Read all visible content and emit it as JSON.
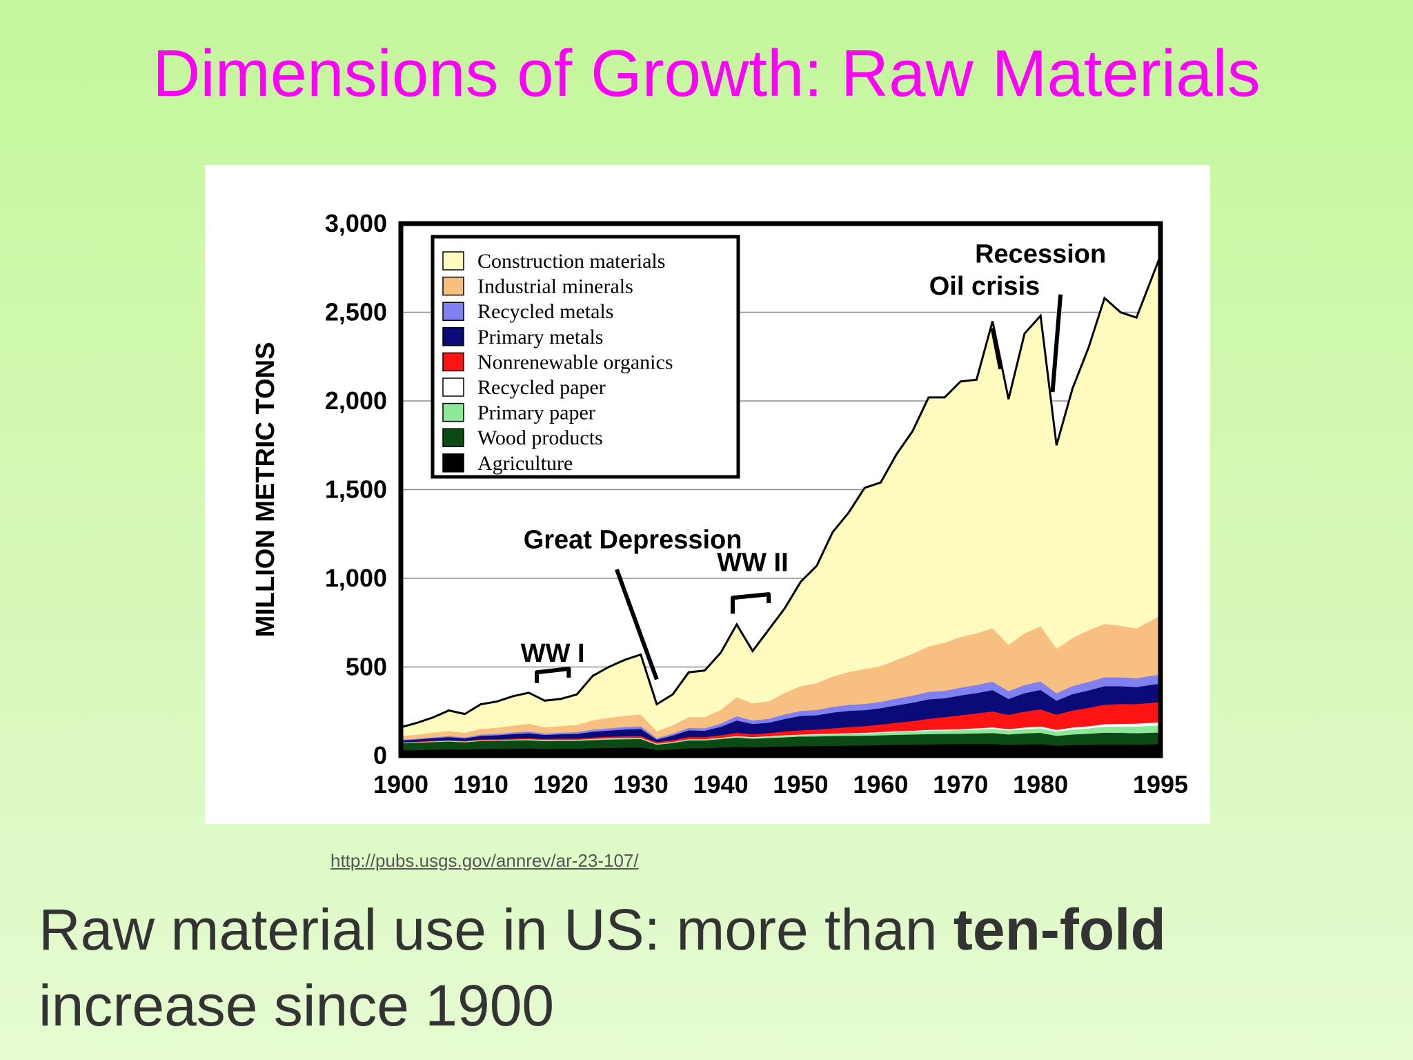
{
  "slide": {
    "title": "Dimensions of Growth: Raw Materials",
    "source_url": "http://pubs.usgs.gov/annrev/ar-23-107/",
    "caption_prefix": "Raw material use in US: more than ",
    "caption_bold": "ten-fold",
    "caption_suffix": "increase since 1900",
    "title_color": "#ff00ff"
  },
  "chart_data": {
    "type": "area",
    "stacked": true,
    "title": "",
    "xlabel": "",
    "ylabel": "MILLION METRIC TONS",
    "xlim": [
      1900,
      1995
    ],
    "ylim": [
      0,
      3000
    ],
    "x_ticks": [
      1900,
      1910,
      1920,
      1930,
      1940,
      1950,
      1960,
      1970,
      1980,
      1995
    ],
    "x_tick_labels": [
      "1900",
      "1910",
      "1920",
      "1930",
      "1940",
      "1950",
      "1960",
      "1970",
      "1980",
      "1995"
    ],
    "y_ticks": [
      0,
      500,
      1000,
      1500,
      2000,
      2500,
      3000
    ],
    "y_tick_labels": [
      "0",
      "500",
      "1,000",
      "1,500",
      "2,000",
      "2,500",
      "3,000"
    ],
    "grid": "horizontal",
    "legend_position": "top-left",
    "x": [
      1900,
      1902,
      1904,
      1906,
      1908,
      1910,
      1912,
      1914,
      1916,
      1918,
      1920,
      1922,
      1924,
      1926,
      1928,
      1930,
      1932,
      1934,
      1936,
      1938,
      1940,
      1942,
      1944,
      1946,
      1948,
      1950,
      1952,
      1954,
      1956,
      1958,
      1960,
      1962,
      1964,
      1966,
      1968,
      1970,
      1972,
      1974,
      1976,
      1978,
      1980,
      1982,
      1984,
      1986,
      1988,
      1990,
      1992,
      1995
    ],
    "cumulative_top": [
      160,
      185,
      215,
      255,
      235,
      290,
      305,
      335,
      355,
      310,
      320,
      345,
      450,
      500,
      540,
      570,
      290,
      345,
      470,
      480,
      580,
      740,
      590,
      710,
      830,
      980,
      1070,
      1260,
      1370,
      1510,
      1540,
      1700,
      1830,
      2020,
      2020,
      2110,
      2120,
      2450,
      2010,
      2380,
      2480,
      1750,
      2070,
      2300,
      2580,
      2500,
      2470,
      2820
    ],
    "series": [
      {
        "name": "Agriculture",
        "color": "#000000",
        "values": [
          30,
          32,
          34,
          36,
          34,
          38,
          39,
          40,
          41,
          39,
          40,
          40,
          42,
          44,
          45,
          46,
          32,
          36,
          42,
          42,
          46,
          50,
          48,
          50,
          52,
          54,
          55,
          56,
          57,
          58,
          60,
          62,
          63,
          64,
          65,
          66,
          66,
          66,
          62,
          64,
          65,
          56,
          60,
          62,
          64,
          64,
          63,
          65
        ]
      },
      {
        "name": "Wood products",
        "color": "#0b4a14",
        "values": [
          40,
          42,
          43,
          44,
          42,
          45,
          45,
          46,
          46,
          44,
          44,
          44,
          46,
          47,
          48,
          48,
          30,
          36,
          44,
          44,
          48,
          52,
          48,
          50,
          52,
          54,
          54,
          55,
          55,
          55,
          55,
          56,
          57,
          58,
          58,
          58,
          60,
          62,
          58,
          62,
          64,
          56,
          60,
          62,
          66,
          65,
          64,
          66
        ]
      },
      {
        "name": "Primary paper",
        "color": "#8ee89a",
        "values": [
          2,
          2,
          3,
          3,
          3,
          3,
          3,
          4,
          4,
          4,
          4,
          4,
          5,
          5,
          5,
          5,
          4,
          4,
          5,
          5,
          5,
          6,
          6,
          7,
          8,
          8,
          9,
          10,
          11,
          12,
          14,
          15,
          16,
          18,
          19,
          20,
          22,
          24,
          22,
          24,
          26,
          24,
          28,
          30,
          34,
          36,
          38,
          40
        ]
      },
      {
        "name": "Recycled paper",
        "color": "#ffffff",
        "values": [
          1,
          1,
          1,
          1,
          1,
          1,
          1,
          1,
          2,
          2,
          2,
          2,
          2,
          2,
          2,
          2,
          2,
          2,
          2,
          2,
          2,
          3,
          3,
          3,
          3,
          3,
          4,
          4,
          4,
          4,
          5,
          5,
          5,
          6,
          6,
          6,
          7,
          8,
          8,
          9,
          10,
          10,
          11,
          12,
          14,
          15,
          16,
          18
        ]
      },
      {
        "name": "Nonrenewable organics",
        "color": "#ff1414",
        "values": [
          3,
          3,
          4,
          4,
          4,
          5,
          5,
          6,
          6,
          6,
          7,
          7,
          8,
          9,
          10,
          10,
          9,
          10,
          12,
          12,
          14,
          18,
          16,
          18,
          22,
          24,
          26,
          30,
          34,
          38,
          42,
          48,
          54,
          62,
          70,
          78,
          84,
          90,
          80,
          90,
          96,
          86,
          96,
          104,
          110,
          112,
          110,
          114
        ]
      },
      {
        "name": "Primary metals",
        "color": "#0a0a78",
        "values": [
          10,
          12,
          14,
          17,
          14,
          20,
          22,
          25,
          28,
          22,
          24,
          26,
          32,
          35,
          38,
          40,
          14,
          26,
          38,
          36,
          48,
          70,
          58,
          58,
          70,
          82,
          80,
          88,
          92,
          90,
          92,
          98,
          104,
          110,
          106,
          112,
          114,
          120,
          90,
          104,
          110,
          78,
          92,
          98,
          104,
          100,
          96,
          104
        ]
      },
      {
        "name": "Recycled metals",
        "color": "#8080f0",
        "values": [
          4,
          4,
          5,
          6,
          5,
          7,
          8,
          9,
          10,
          8,
          9,
          10,
          12,
          13,
          14,
          15,
          8,
          10,
          14,
          14,
          18,
          24,
          20,
          22,
          26,
          28,
          30,
          32,
          34,
          35,
          36,
          38,
          40,
          42,
          42,
          44,
          46,
          48,
          44,
          46,
          48,
          42,
          46,
          48,
          50,
          50,
          50,
          52
        ]
      },
      {
        "name": "Industrial minerals",
        "color": "#f8c080",
        "values": [
          20,
          22,
          25,
          28,
          25,
          32,
          34,
          38,
          42,
          35,
          36,
          40,
          52,
          58,
          62,
          66,
          38,
          46,
          60,
          62,
          76,
          106,
          96,
          98,
          120,
          138,
          150,
          170,
          185,
          195,
          200,
          218,
          235,
          255,
          270,
          285,
          290,
          300,
          260,
          290,
          310,
          250,
          270,
          290,
          300,
          290,
          280,
          330
        ]
      },
      {
        "name": "Construction materials",
        "color": "#fffbbe",
        "values": [
          50,
          67,
          86,
          116,
          107,
          139,
          148,
          166,
          176,
          150,
          154,
          172,
          251,
          285,
          316,
          338,
          153,
          175,
          253,
          263,
          323,
          411,
          295,
          404,
          477,
          589,
          662,
          815,
          898,
          1023,
          1036,
          1160,
          1256,
          1405,
          1384,
          1441,
          1431,
          1732,
          1386,
          1691,
          1751,
          1148,
          1407,
          1574,
          1838,
          1768,
          1753,
          2031
        ]
      }
    ],
    "annotations": [
      {
        "text": "WW I",
        "x": 1919,
        "y": 530
      },
      {
        "text": "Great Depression",
        "x": 1929,
        "y": 1170
      },
      {
        "text": "WW II",
        "x": 1944,
        "y": 1040
      },
      {
        "text": "Oil crisis",
        "x": 1973,
        "y": 2600
      },
      {
        "text": "Recession",
        "x": 1980,
        "y": 2780
      }
    ]
  }
}
